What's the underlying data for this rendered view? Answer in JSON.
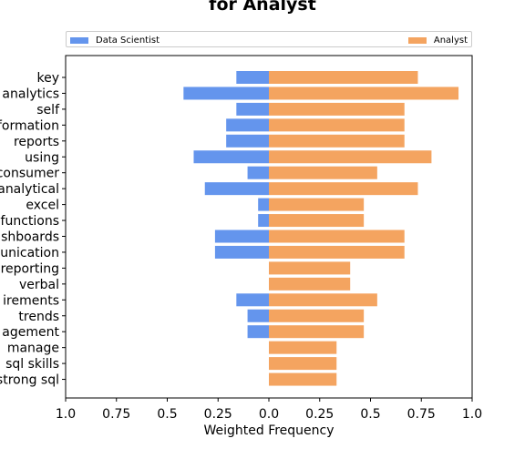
{
  "chart_data": {
    "type": "bar",
    "orientation": "horizontal-diverging",
    "title": "for Analyst",
    "xlabel": "Weighted Frequency",
    "ylabel": "",
    "xlim": [
      -1.0,
      1.0
    ],
    "xtick_labels": [
      "1.0",
      "0.75",
      "0.5",
      "0.25",
      "0.0",
      "0.25",
      "0.5",
      "0.75",
      "1.0"
    ],
    "xtick_values": [
      -1.0,
      -0.75,
      -0.5,
      -0.25,
      0.0,
      0.25,
      0.5,
      0.75,
      1.0
    ],
    "legend_position": "top",
    "grid": false,
    "categories": [
      "key",
      "analytics",
      "self",
      "formation",
      "reports",
      "using",
      "consumer",
      "analytical",
      "excel",
      "functions",
      "shboards",
      "unication",
      "reporting",
      "verbal",
      "irements",
      "trends",
      "agement",
      "manage",
      "sql skills",
      "strong sql"
    ],
    "series": [
      {
        "name": "Data Scientist",
        "color": "#6495ed",
        "direction": "left",
        "values": [
          0.16,
          0.42,
          0.16,
          0.21,
          0.21,
          0.37,
          0.105,
          0.315,
          0.053,
          0.053,
          0.265,
          0.265,
          0,
          0,
          0.16,
          0.105,
          0.105,
          0,
          0,
          0
        ]
      },
      {
        "name": "Analyst",
        "color": "#f4a460",
        "direction": "right",
        "values": [
          0.733,
          0.933,
          0.667,
          0.667,
          0.667,
          0.8,
          0.533,
          0.733,
          0.467,
          0.467,
          0.667,
          0.667,
          0.4,
          0.4,
          0.533,
          0.467,
          0.467,
          0.333,
          0.333,
          0.333
        ]
      }
    ]
  }
}
